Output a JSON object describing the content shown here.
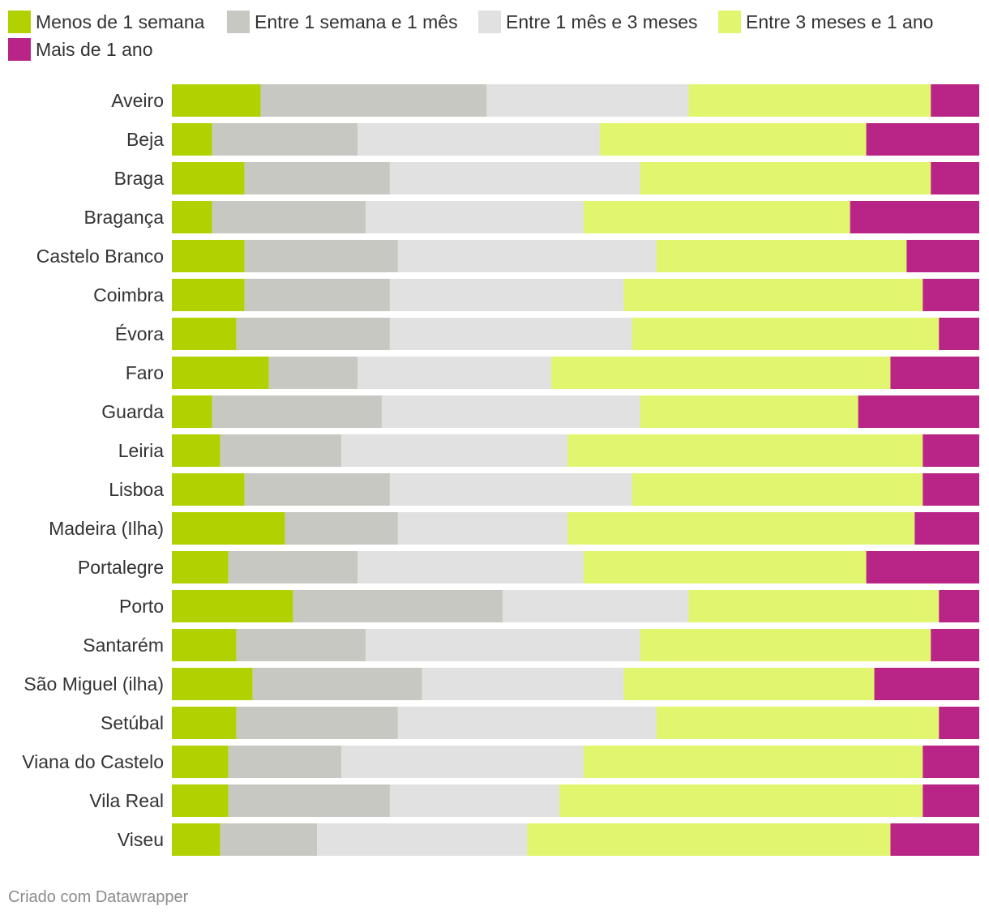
{
  "chart_data": {
    "type": "bar",
    "orientation": "horizontal",
    "stacked": true,
    "normalized": true,
    "unit": "%",
    "series": [
      {
        "name": "Menos de 1 semana",
        "color": "#b1d100",
        "values": [
          11,
          5,
          9,
          5,
          9,
          9,
          8,
          12,
          5,
          6,
          9,
          14,
          7,
          15,
          8,
          10,
          8,
          7,
          7,
          6
        ]
      },
      {
        "name": "Entre 1 semana e 1 mês",
        "color": "#c8c8c3",
        "values": [
          28,
          18,
          18,
          19,
          19,
          18,
          19,
          11,
          21,
          15,
          18,
          14,
          16,
          26,
          16,
          21,
          20,
          14,
          20,
          12
        ]
      },
      {
        "name": "Entre 1 mês e 3 meses",
        "color": "#e1e1e1",
        "values": [
          25,
          30,
          31,
          27,
          32,
          29,
          30,
          24,
          32,
          28,
          30,
          21,
          28,
          23,
          34,
          25,
          32,
          30,
          21,
          26
        ]
      },
      {
        "name": "Entre 3 meses e 1 ano",
        "color": "#e1f56e",
        "values": [
          30,
          33,
          36,
          33,
          31,
          37,
          38,
          42,
          27,
          44,
          36,
          43,
          35,
          31,
          36,
          31,
          35,
          42,
          45,
          45
        ]
      },
      {
        "name": "Mais de 1 ano",
        "color": "#b82586",
        "values": [
          6,
          14,
          6,
          16,
          9,
          7,
          5,
          11,
          15,
          7,
          7,
          8,
          14,
          5,
          6,
          13,
          5,
          7,
          7,
          11
        ]
      }
    ],
    "categories": [
      "Aveiro",
      "Beja",
      "Braga",
      "Bragança",
      "Castelo Branco",
      "Coimbra",
      "Évora",
      "Faro",
      "Guarda",
      "Leiria",
      "Lisboa",
      "Madeira (Ilha)",
      "Portalegre",
      "Porto",
      "Santarém",
      "São Miguel (ilha)",
      "Setúbal",
      "Viana do Castelo",
      "Vila Real",
      "Viseu"
    ],
    "legend_position": "top-left",
    "grid": false
  },
  "footer": {
    "credit": "Criado com Datawrapper"
  }
}
